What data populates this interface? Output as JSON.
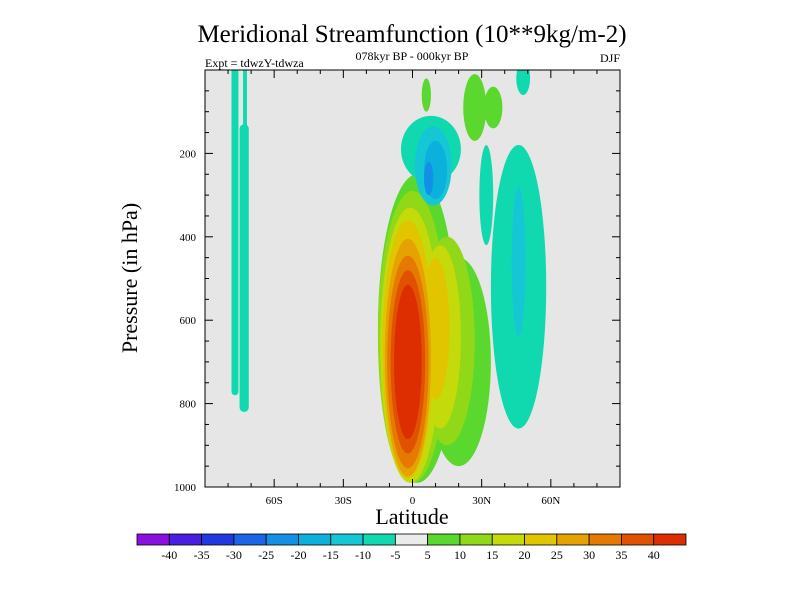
{
  "chart_data": {
    "type": "heatmap",
    "title": "Meridional Streamfunction (10**9kg/m-2)",
    "subtitle": "078kyr BP - 000kyr BP",
    "experiment_label": "Expt = tdwzY-tdwza",
    "season_label": "DJF",
    "xlabel": "Latitude",
    "ylabel": "Pressure (in hPa)",
    "xlim": [
      -90,
      90
    ],
    "ylim": [
      1000,
      0
    ],
    "x_ticks": [
      -60,
      -30,
      0,
      30,
      60
    ],
    "x_tick_labels": [
      "60S",
      "30S",
      "0",
      "30N",
      "60N"
    ],
    "y_ticks": [
      200,
      400,
      600,
      800,
      1000
    ],
    "y_tick_labels": [
      "200",
      "400",
      "600",
      "800",
      "1000"
    ],
    "background_color": "#e6e6e6",
    "colorbar": {
      "labels": [
        "-40",
        "-35",
        "-30",
        "-25",
        "-20",
        "-15",
        "-10",
        "-5",
        "5",
        "10",
        "15",
        "20",
        "25",
        "30",
        "35",
        "40"
      ],
      "colors": [
        "#8a10e0",
        "#4a1ee0",
        "#2038e0",
        "#1a66e6",
        "#1190e6",
        "#0bb0dc",
        "#15c7d5",
        "#10d9b0",
        "#ebebeb",
        "#5ad82e",
        "#90d818",
        "#c4da0a",
        "#e0c500",
        "#e6a200",
        "#e67a00",
        "#e05200",
        "#dc2e00"
      ]
    },
    "features": [
      {
        "name": "tropical positive cell core",
        "lat": -2,
        "pressure": 680,
        "level": 40
      },
      {
        "name": "tropical positive cell outer",
        "lat": 0,
        "pressure": 600,
        "level": 5
      },
      {
        "name": "northern subtropical positive cell",
        "lat": 10,
        "pressure": 650,
        "level": 20
      },
      {
        "name": "upper tropical negative cell",
        "lat": 8,
        "pressure": 250,
        "level": -25
      },
      {
        "name": "northern midlatitude negative cell",
        "lat": 45,
        "pressure": 500,
        "level": -15
      },
      {
        "name": "southern high latitude negative strip",
        "lat": -72,
        "pressure": 400,
        "level": -10
      }
    ]
  }
}
